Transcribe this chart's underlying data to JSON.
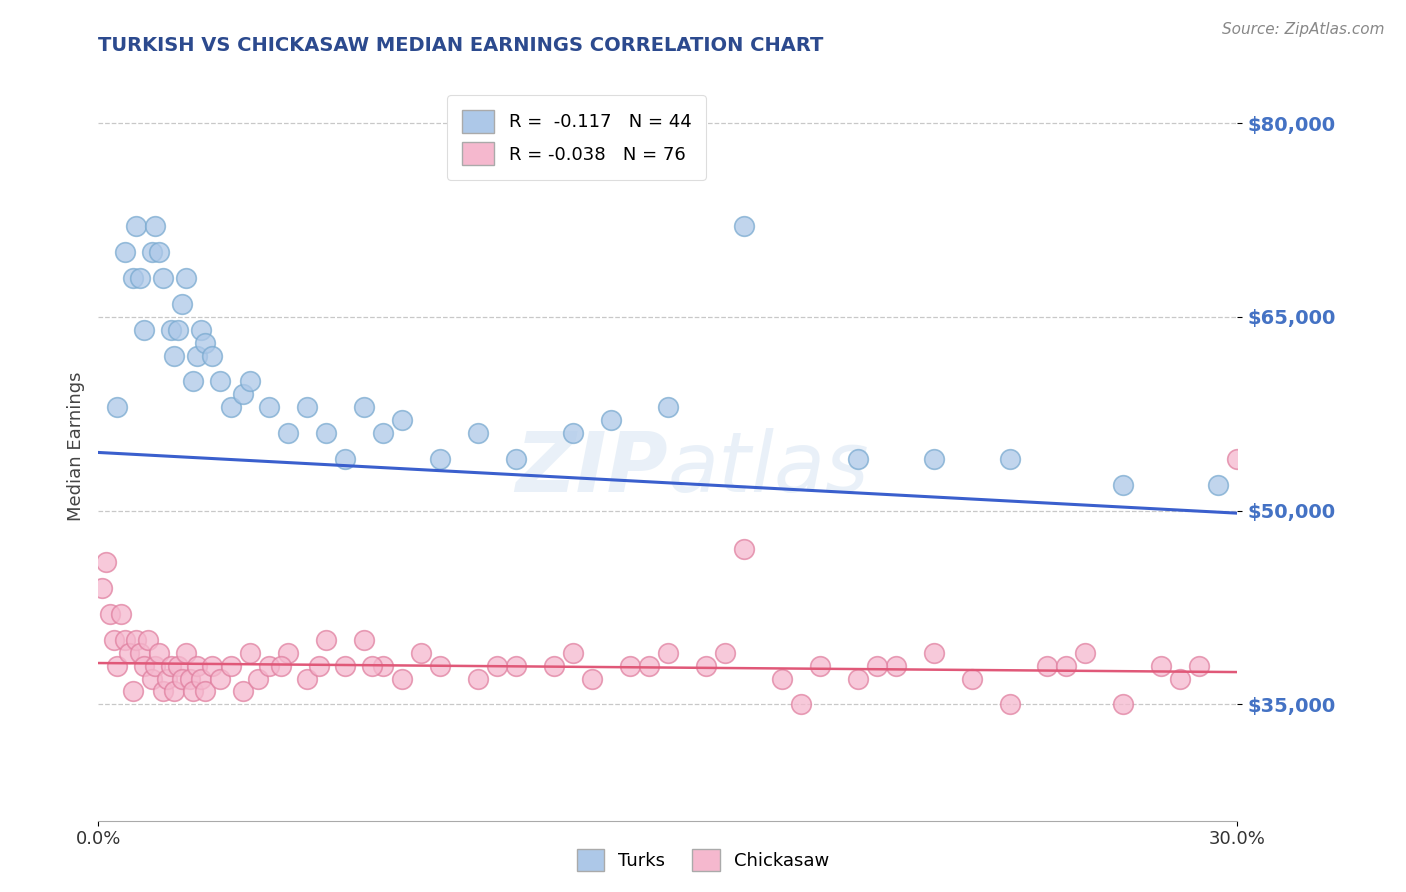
{
  "title": "TURKISH VS CHICKASAW MEDIAN EARNINGS CORRELATION CHART",
  "source": "Source: ZipAtlas.com",
  "ylabel": "Median Earnings",
  "ylim": [
    26000,
    84000
  ],
  "xlim": [
    0.0,
    30.0
  ],
  "yticks": [
    35000,
    50000,
    65000,
    80000
  ],
  "ytick_labels": [
    "$35,000",
    "$50,000",
    "$65,000",
    "$80,000"
  ],
  "legend_r_turks": "R =  -0.117",
  "legend_n_turks": "N = 44",
  "legend_r_chickasaw": "R = -0.038",
  "legend_n_chickasaw": "N = 76",
  "turks_color": "#adc8e8",
  "turks_edge_color": "#7aaad0",
  "turks_line_color": "#3a5fcd",
  "chickasaw_color": "#f5b8ce",
  "chickasaw_edge_color": "#e080a0",
  "chickasaw_line_color": "#e05878",
  "background_color": "#ffffff",
  "grid_color": "#c8c8c8",
  "title_color": "#2c4a8e",
  "ytick_color": "#4472c4",
  "turks_x": [
    0.5,
    0.7,
    0.9,
    1.0,
    1.1,
    1.2,
    1.4,
    1.5,
    1.6,
    1.7,
    1.9,
    2.0,
    2.1,
    2.2,
    2.3,
    2.5,
    2.6,
    2.7,
    2.8,
    3.0,
    3.2,
    3.5,
    3.8,
    4.0,
    4.5,
    5.0,
    5.5,
    6.0,
    6.5,
    7.0,
    7.5,
    8.0,
    9.0,
    10.0,
    11.0,
    12.5,
    13.5,
    15.0,
    17.0,
    20.0,
    22.0,
    24.0,
    27.0,
    29.5
  ],
  "turks_y": [
    58000,
    70000,
    68000,
    72000,
    68000,
    64000,
    70000,
    72000,
    70000,
    68000,
    64000,
    62000,
    64000,
    66000,
    68000,
    60000,
    62000,
    64000,
    63000,
    62000,
    60000,
    58000,
    59000,
    60000,
    58000,
    56000,
    58000,
    56000,
    54000,
    58000,
    56000,
    57000,
    54000,
    56000,
    54000,
    56000,
    57000,
    58000,
    72000,
    54000,
    54000,
    54000,
    52000,
    52000
  ],
  "chickasaw_x": [
    0.1,
    0.2,
    0.3,
    0.4,
    0.5,
    0.6,
    0.7,
    0.8,
    0.9,
    1.0,
    1.1,
    1.2,
    1.3,
    1.4,
    1.5,
    1.6,
    1.7,
    1.8,
    1.9,
    2.0,
    2.1,
    2.2,
    2.3,
    2.4,
    2.5,
    2.6,
    2.7,
    2.8,
    3.0,
    3.2,
    3.5,
    3.8,
    4.0,
    4.2,
    4.5,
    5.0,
    5.5,
    6.0,
    6.5,
    7.0,
    7.5,
    8.0,
    9.0,
    10.0,
    11.0,
    12.0,
    13.0,
    14.0,
    15.0,
    16.0,
    17.0,
    18.0,
    19.0,
    20.0,
    21.0,
    22.0,
    23.0,
    24.0,
    25.0,
    26.0,
    27.0,
    28.0,
    29.0,
    30.0,
    4.8,
    5.8,
    7.2,
    8.5,
    10.5,
    12.5,
    14.5,
    16.5,
    18.5,
    20.5,
    25.5,
    28.5
  ],
  "chickasaw_y": [
    44000,
    46000,
    42000,
    40000,
    38000,
    42000,
    40000,
    39000,
    36000,
    40000,
    39000,
    38000,
    40000,
    37000,
    38000,
    39000,
    36000,
    37000,
    38000,
    36000,
    38000,
    37000,
    39000,
    37000,
    36000,
    38000,
    37000,
    36000,
    38000,
    37000,
    38000,
    36000,
    39000,
    37000,
    38000,
    39000,
    37000,
    40000,
    38000,
    40000,
    38000,
    37000,
    38000,
    37000,
    38000,
    38000,
    37000,
    38000,
    39000,
    38000,
    47000,
    37000,
    38000,
    37000,
    38000,
    39000,
    37000,
    35000,
    38000,
    39000,
    35000,
    38000,
    38000,
    54000,
    38000,
    38000,
    38000,
    39000,
    38000,
    39000,
    38000,
    39000,
    35000,
    38000,
    38000,
    37000
  ]
}
